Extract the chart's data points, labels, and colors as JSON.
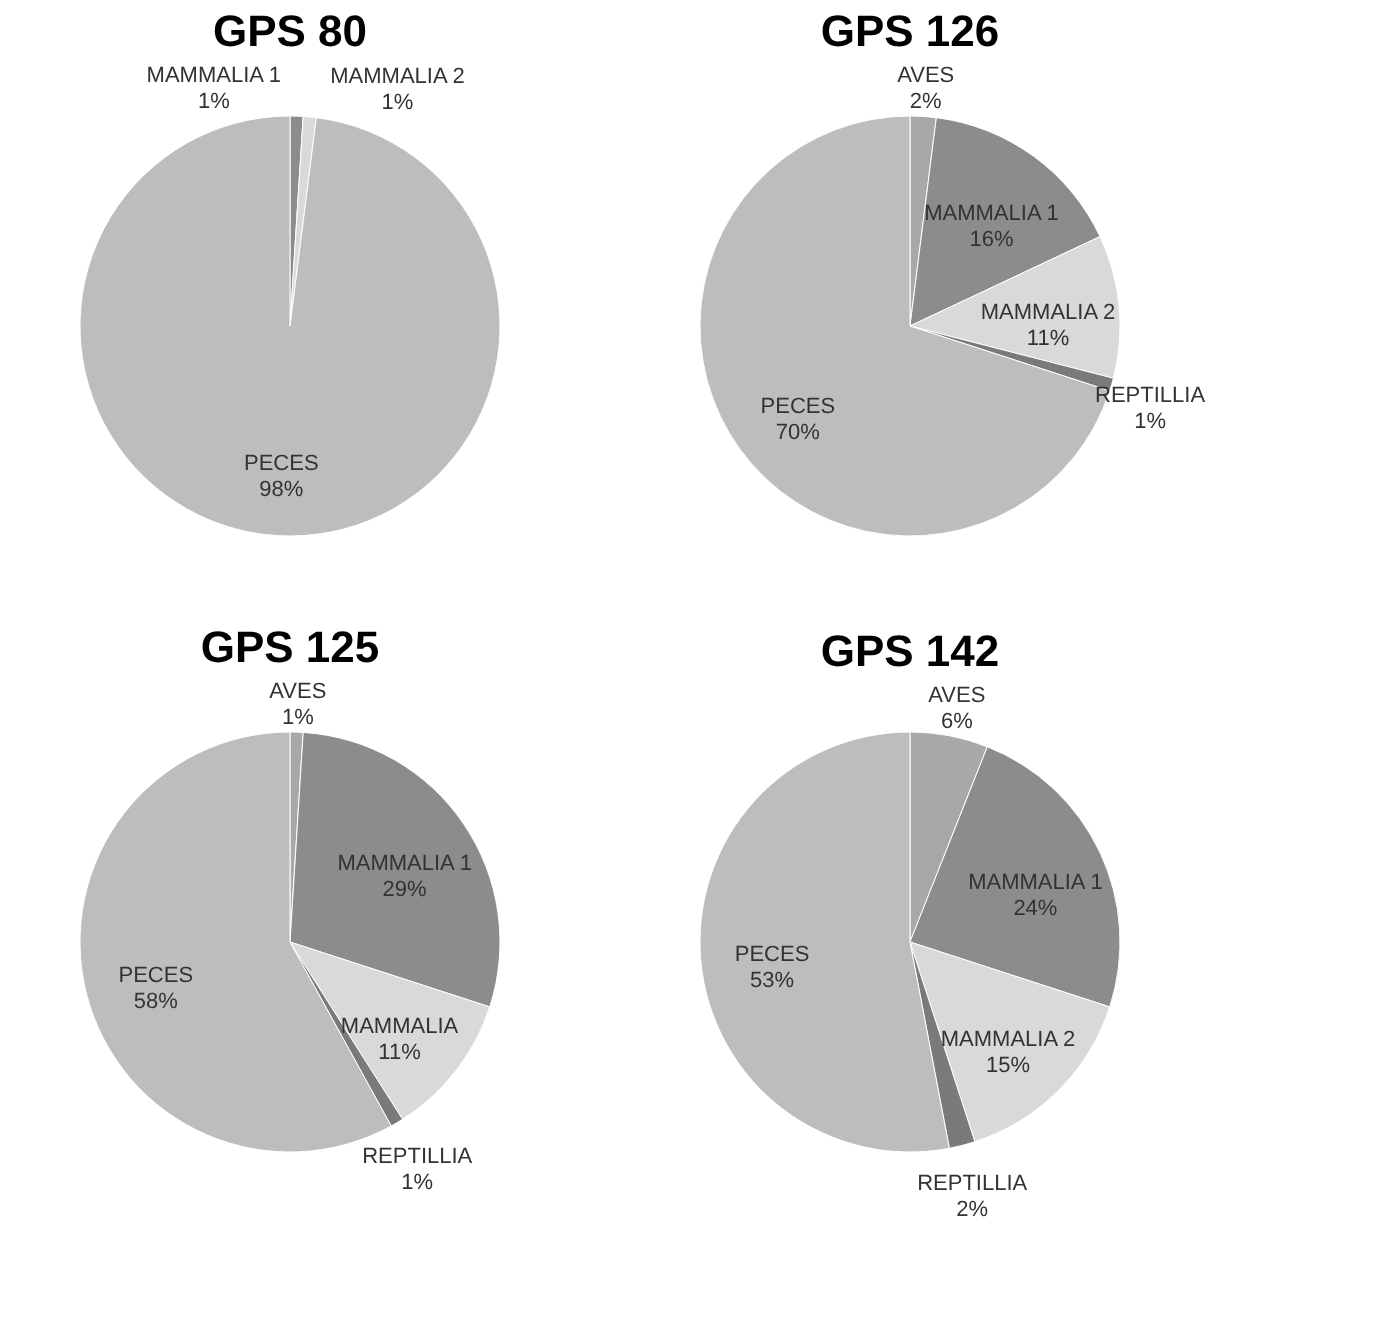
{
  "chart_data": [
    {
      "type": "pie",
      "title": "GPS 80",
      "categories": [
        "MAMMALIA 1",
        "MAMMALIA 2",
        "PECES"
      ],
      "values": [
        1,
        1,
        98
      ],
      "data_labels": true,
      "value_labels": [
        "1%",
        "1%",
        "98%"
      ],
      "colors": [
        "#8c8c8c",
        "#d9d9d9",
        "#bdbdbd"
      ]
    },
    {
      "type": "pie",
      "title": "GPS 126",
      "categories": [
        "AVES",
        "MAMMALIA 1",
        "MAMMALIA 2",
        "REPTILLIA",
        "PECES"
      ],
      "values": [
        2,
        16,
        11,
        1,
        70
      ],
      "data_labels": true,
      "value_labels": [
        "2%",
        "16%",
        "11%",
        "1%",
        "70%"
      ],
      "colors": [
        "#a8a8a8",
        "#8c8c8c",
        "#d9d9d9",
        "#7a7a7a",
        "#bdbdbd"
      ]
    },
    {
      "type": "pie",
      "title": "GPS 125",
      "categories": [
        "AVES",
        "MAMMALIA 1",
        "MAMMALIA",
        "REPTILLIA",
        "PECES"
      ],
      "values": [
        1,
        29,
        11,
        1,
        58
      ],
      "data_labels": true,
      "value_labels": [
        "1%",
        "29%",
        "11%",
        "1%",
        "58%"
      ],
      "colors": [
        "#a8a8a8",
        "#8c8c8c",
        "#d9d9d9",
        "#7a7a7a",
        "#bdbdbd"
      ]
    },
    {
      "type": "pie",
      "title": "GPS 142",
      "categories": [
        "AVES",
        "MAMMALIA 1",
        "MAMMALIA 2",
        "REPTILLIA",
        "PECES"
      ],
      "values": [
        6,
        24,
        15,
        2,
        53
      ],
      "data_labels": true,
      "value_labels": [
        "6%",
        "24%",
        "15%",
        "2%",
        "53%"
      ],
      "colors": [
        "#a8a8a8",
        "#8c8c8c",
        "#d9d9d9",
        "#7a7a7a",
        "#bdbdbd"
      ]
    }
  ]
}
